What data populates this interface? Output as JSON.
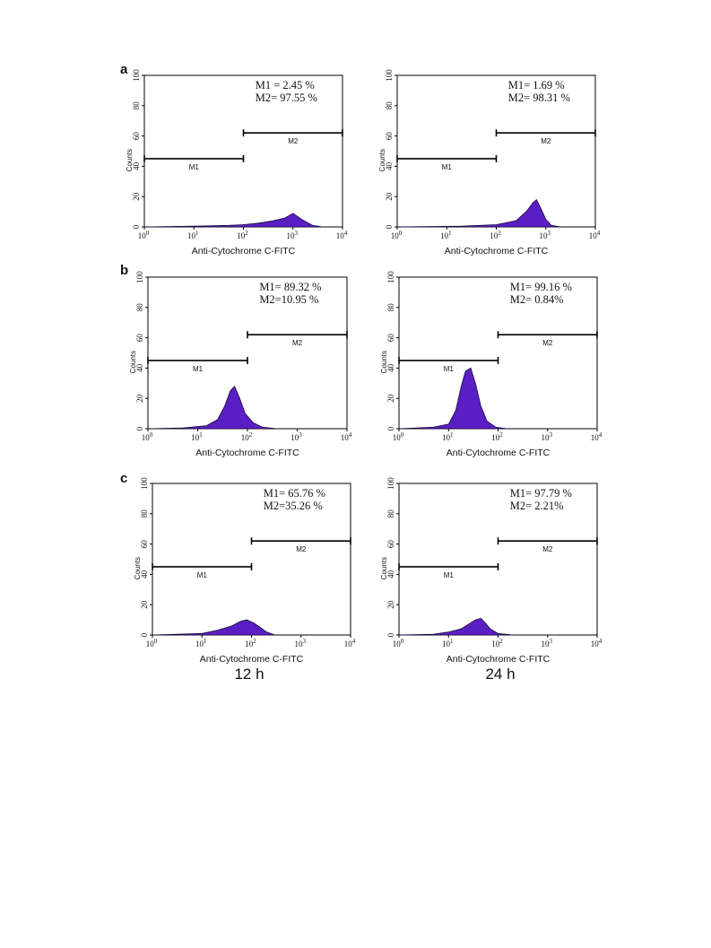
{
  "panel_letters": [
    "a",
    "b",
    "c"
  ],
  "time_labels": [
    "12 h",
    "24 h"
  ],
  "chart_data": [
    {
      "type": "area",
      "panel": "a",
      "column": "12 h",
      "xlabel": "Anti-Cytochrome C-FITC",
      "ylabel": "Counts",
      "xscale": "log",
      "xlim": [
        1,
        10000
      ],
      "ylim": [
        0,
        100
      ],
      "xtick_exp": [
        "0",
        "1",
        "2",
        "3",
        "4"
      ],
      "yticks": [
        "0",
        "20",
        "40",
        "60",
        "80",
        "100"
      ],
      "stats": [
        "M1 = 2.45 %",
        "M2= 97.55 %"
      ],
      "markers": [
        {
          "name": "M1",
          "range": [
            1,
            100
          ],
          "level": 45
        },
        {
          "name": "M2",
          "range": [
            100,
            10000
          ],
          "level": 62
        }
      ],
      "histogram": {
        "x": [
          1,
          10,
          50,
          100,
          200,
          400,
          700,
          1000,
          1500,
          2500,
          4000
        ],
        "counts": [
          0,
          0.5,
          1,
          1.5,
          2.5,
          4,
          6,
          9,
          5,
          1,
          0
        ]
      }
    },
    {
      "type": "area",
      "panel": "a",
      "column": "24 h",
      "xlabel": "Anti-Cytochrome C-FITC",
      "ylabel": "Counts",
      "xscale": "log",
      "xlim": [
        1,
        10000
      ],
      "ylim": [
        0,
        100
      ],
      "xtick_exp": [
        "0",
        "1",
        "2",
        "3",
        "4"
      ],
      "yticks": [
        "0",
        "20",
        "40",
        "60",
        "80",
        "100"
      ],
      "stats": [
        "M1= 1.69 %",
        "M2= 98.31 %"
      ],
      "markers": [
        {
          "name": "M1",
          "range": [
            1,
            100
          ],
          "level": 45
        },
        {
          "name": "M2",
          "range": [
            100,
            10000
          ],
          "level": 62
        }
      ],
      "histogram": {
        "x": [
          1,
          20,
          100,
          250,
          400,
          550,
          650,
          800,
          1000,
          1300,
          2000
        ],
        "counts": [
          0,
          0.5,
          1.5,
          4,
          10,
          16,
          18,
          12,
          5,
          1,
          0
        ]
      }
    },
    {
      "type": "area",
      "panel": "b",
      "column": "12 h",
      "xlabel": "Anti-Cytochrome C-FITC",
      "ylabel": "Counts",
      "xscale": "log",
      "xlim": [
        1,
        10000
      ],
      "ylim": [
        0,
        100
      ],
      "xtick_exp": [
        "0",
        "1",
        "2",
        "3",
        "4"
      ],
      "yticks": [
        "0",
        "20",
        "40",
        "60",
        "80",
        "100"
      ],
      "stats": [
        "M1= 89.32 %",
        "M2=10.95 %"
      ],
      "markers": [
        {
          "name": "M1",
          "range": [
            1,
            100
          ],
          "level": 45
        },
        {
          "name": "M2",
          "range": [
            100,
            10000
          ],
          "level": 62
        }
      ],
      "histogram": {
        "x": [
          1,
          5,
          15,
          25,
          35,
          45,
          55,
          70,
          90,
          130,
          200,
          400
        ],
        "counts": [
          0,
          0.5,
          2,
          6,
          15,
          25,
          28,
          20,
          10,
          4,
          1,
          0
        ]
      }
    },
    {
      "type": "area",
      "panel": "b",
      "column": "24 h",
      "xlabel": "Anti-Cytochrome C-FITC",
      "ylabel": "Counts",
      "xscale": "log",
      "xlim": [
        1,
        10000
      ],
      "ylim": [
        0,
        100
      ],
      "xtick_exp": [
        "0",
        "1",
        "2",
        "3",
        "4"
      ],
      "yticks": [
        "0",
        "20",
        "40",
        "60",
        "80",
        "100"
      ],
      "stats": [
        "M1= 99.16 %",
        "M2= 0.84%"
      ],
      "markers": [
        {
          "name": "M1",
          "range": [
            1,
            100
          ],
          "level": 45
        },
        {
          "name": "M2",
          "range": [
            100,
            10000
          ],
          "level": 62
        }
      ],
      "histogram": {
        "x": [
          1,
          5,
          10,
          14,
          18,
          22,
          28,
          35,
          45,
          60,
          90,
          150
        ],
        "counts": [
          0,
          1,
          3,
          12,
          28,
          38,
          40,
          30,
          15,
          5,
          1,
          0
        ]
      }
    },
    {
      "type": "area",
      "panel": "c",
      "column": "12 h",
      "xlabel": "Anti-Cytochrome C-FITC",
      "ylabel": "Counts",
      "xscale": "log",
      "xlim": [
        1,
        10000
      ],
      "ylim": [
        0,
        100
      ],
      "xtick_exp": [
        "0",
        "1",
        "2",
        "3",
        "4"
      ],
      "yticks": [
        "0",
        "20",
        "40",
        "60",
        "80",
        "100"
      ],
      "stats": [
        "M1= 65.76 %",
        "M2=35.26 %"
      ],
      "markers": [
        {
          "name": "M1",
          "range": [
            1,
            100
          ],
          "level": 45
        },
        {
          "name": "M2",
          "range": [
            100,
            10000
          ],
          "level": 62
        }
      ],
      "histogram": {
        "x": [
          1,
          10,
          20,
          40,
          60,
          80,
          110,
          150,
          200,
          300
        ],
        "counts": [
          0,
          1,
          3,
          6,
          9,
          10,
          8,
          5,
          2,
          0
        ]
      }
    },
    {
      "type": "area",
      "panel": "c",
      "column": "24 h",
      "xlabel": "Anti-Cytochrome C-FITC",
      "ylabel": "Counts",
      "xscale": "log",
      "xlim": [
        1,
        10000
      ],
      "ylim": [
        0,
        100
      ],
      "xtick_exp": [
        "0",
        "1",
        "2",
        "3",
        "4"
      ],
      "yticks": [
        "0",
        "20",
        "40",
        "60",
        "80",
        "100"
      ],
      "stats": [
        "M1= 97.79 %",
        "M2= 2.21%"
      ],
      "markers": [
        {
          "name": "M1",
          "range": [
            1,
            100
          ],
          "level": 45
        },
        {
          "name": "M2",
          "range": [
            100,
            10000
          ],
          "level": 62
        }
      ],
      "histogram": {
        "x": [
          1,
          5,
          10,
          18,
          25,
          35,
          45,
          55,
          70,
          100,
          200
        ],
        "counts": [
          0,
          0.5,
          2,
          4,
          7,
          10,
          11,
          8,
          4,
          1,
          0
        ]
      }
    }
  ]
}
